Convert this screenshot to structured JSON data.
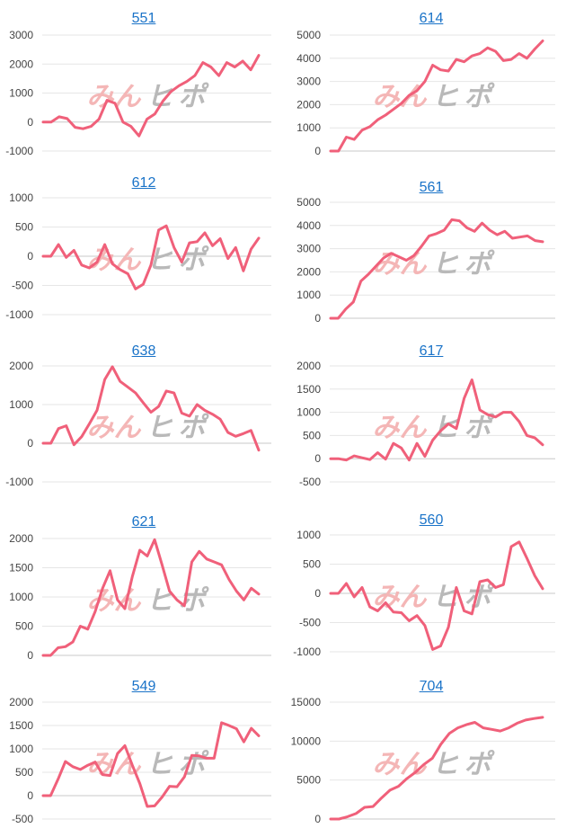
{
  "watermark": {
    "part1": "みん",
    "part2": "ヒ",
    "part3": "ポ"
  },
  "chart_data": [
    {
      "id": "551",
      "type": "line",
      "title": "551",
      "ylim": [
        -1000,
        3000
      ],
      "yticks": [
        3000,
        2000,
        1000,
        0,
        -1000
      ],
      "values": [
        0,
        0,
        180,
        120,
        -180,
        -230,
        -150,
        100,
        750,
        650,
        0,
        -150,
        -480,
        100,
        280,
        720,
        1050,
        1250,
        1400,
        1600,
        2050,
        1900,
        1600,
        2050,
        1900,
        2100,
        1800,
        2300
      ]
    },
    {
      "id": "614",
      "type": "line",
      "title": "614",
      "ylim": [
        0,
        5000
      ],
      "yticks": [
        5000,
        4000,
        3000,
        2000,
        1000,
        0
      ],
      "values": [
        0,
        0,
        600,
        500,
        900,
        1050,
        1350,
        1550,
        1800,
        2050,
        2400,
        2600,
        3000,
        3700,
        3500,
        3450,
        3950,
        3850,
        4100,
        4200,
        4450,
        4300,
        3900,
        3950,
        4200,
        4000,
        4400,
        4750
      ]
    },
    {
      "id": "612",
      "type": "line",
      "title": "612",
      "ylim": [
        -1000,
        1000
      ],
      "yticks": [
        1000,
        500,
        0,
        -500,
        -1000
      ],
      "values": [
        0,
        0,
        200,
        -20,
        100,
        -150,
        -200,
        -100,
        200,
        -130,
        -230,
        -300,
        -560,
        -480,
        -150,
        450,
        520,
        150,
        -100,
        230,
        250,
        400,
        180,
        300,
        -40,
        150,
        -250,
        120,
        310
      ]
    },
    {
      "id": "561",
      "type": "line",
      "title": "561",
      "ylim": [
        0,
        5000
      ],
      "yticks": [
        5000,
        4000,
        3000,
        2000,
        1000,
        0
      ],
      "values": [
        0,
        0,
        400,
        700,
        1600,
        1900,
        2250,
        2600,
        2800,
        2650,
        2500,
        2700,
        3100,
        3550,
        3650,
        3800,
        4250,
        4200,
        3900,
        3750,
        4100,
        3800,
        3600,
        3750,
        3450,
        3500,
        3550,
        3350,
        3300
      ]
    },
    {
      "id": "638",
      "type": "line",
      "title": "638",
      "ylim": [
        -1000,
        2000
      ],
      "yticks": [
        2000,
        1000,
        0,
        -1000
      ],
      "values": [
        0,
        0,
        380,
        450,
        -40,
        170,
        500,
        850,
        1650,
        1980,
        1600,
        1450,
        1300,
        1050,
        800,
        950,
        1350,
        1300,
        780,
        700,
        1000,
        850,
        750,
        620,
        280,
        180,
        250,
        330,
        -180
      ]
    },
    {
      "id": "617",
      "type": "line",
      "title": "617",
      "ylim": [
        -500,
        2000
      ],
      "yticks": [
        2000,
        1500,
        1000,
        500,
        0,
        -500
      ],
      "values": [
        0,
        0,
        -30,
        60,
        20,
        -20,
        130,
        -10,
        330,
        230,
        -30,
        330,
        50,
        400,
        600,
        750,
        650,
        1300,
        1700,
        1050,
        950,
        900,
        1000,
        1000,
        800,
        500,
        450,
        300
      ]
    },
    {
      "id": "621",
      "type": "line",
      "title": "621",
      "ylim": [
        0,
        2000
      ],
      "yticks": [
        2000,
        1500,
        1000,
        500,
        0
      ],
      "values": [
        0,
        0,
        130,
        150,
        230,
        500,
        450,
        750,
        1150,
        1450,
        950,
        800,
        1350,
        1800,
        1700,
        1980,
        1550,
        1100,
        950,
        850,
        1600,
        1780,
        1650,
        1600,
        1550,
        1300,
        1100,
        950,
        1150,
        1050
      ]
    },
    {
      "id": "560",
      "type": "line",
      "title": "560",
      "ylim": [
        -1000,
        1000
      ],
      "yticks": [
        1000,
        500,
        0,
        -500,
        -1000
      ],
      "values": [
        0,
        0,
        170,
        -60,
        100,
        -230,
        -300,
        -160,
        -320,
        -330,
        -470,
        -380,
        -550,
        -960,
        -900,
        -580,
        100,
        -300,
        -350,
        200,
        230,
        100,
        150,
        800,
        880,
        600,
        300,
        80
      ]
    },
    {
      "id": "549",
      "type": "line",
      "title": "549",
      "ylim": [
        -500,
        2000
      ],
      "yticks": [
        2000,
        1500,
        1000,
        500,
        0,
        -500
      ],
      "values": [
        0,
        0,
        350,
        730,
        620,
        560,
        650,
        720,
        450,
        430,
        900,
        1070,
        650,
        260,
        -230,
        -220,
        -30,
        200,
        190,
        400,
        860,
        850,
        800,
        800,
        1560,
        1500,
        1430,
        1150,
        1440,
        1280
      ]
    },
    {
      "id": "704",
      "type": "line",
      "title": "704",
      "ylim": [
        0,
        15000
      ],
      "yticks": [
        15000,
        10000,
        5000,
        0
      ],
      "values": [
        0,
        0,
        300,
        700,
        1500,
        1600,
        2700,
        3700,
        4200,
        5200,
        6000,
        7000,
        7800,
        9600,
        11000,
        11700,
        12100,
        12400,
        11700,
        11500,
        11300,
        11700,
        12300,
        12700,
        12900,
        13050
      ]
    }
  ]
}
